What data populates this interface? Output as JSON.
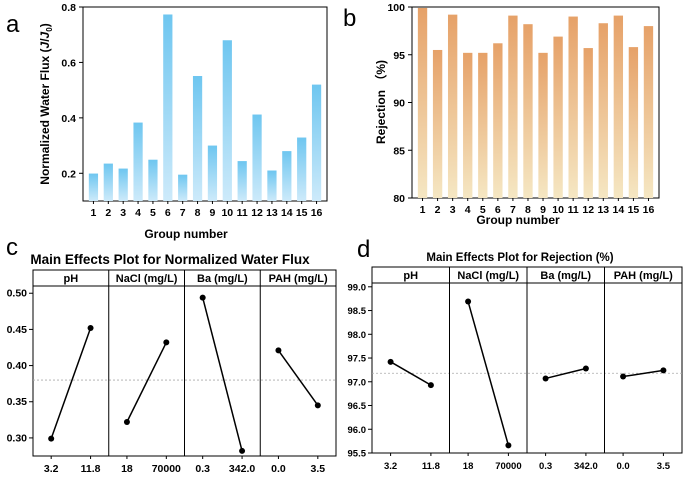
{
  "chart_data": [
    {
      "panel": "a",
      "type": "bar",
      "xlabel": "Group number",
      "ylabel": "Normalized Water Flux (J/J0)",
      "categories": [
        "1",
        "2",
        "3",
        "4",
        "5",
        "6",
        "7",
        "8",
        "9",
        "10",
        "11",
        "12",
        "13",
        "14",
        "15",
        "16"
      ],
      "values": [
        0.199,
        0.235,
        0.217,
        0.383,
        0.249,
        0.773,
        0.195,
        0.551,
        0.3,
        0.68,
        0.244,
        0.412,
        0.21,
        0.28,
        0.329,
        0.52
      ],
      "ylim": [
        0.1,
        0.8
      ],
      "yticks": [
        0.2,
        0.4,
        0.6,
        0.8
      ],
      "color_top": "#6ec6f0",
      "color_bottom": "#cdeafa"
    },
    {
      "panel": "b",
      "type": "bar",
      "xlabel": "Group number",
      "ylabel": "Rejection （%)",
      "categories": [
        "1",
        "2",
        "3",
        "4",
        "5",
        "6",
        "7",
        "8",
        "9",
        "10",
        "11",
        "12",
        "13",
        "14",
        "15",
        "16"
      ],
      "values": [
        99.9,
        95.5,
        99.2,
        95.2,
        95.2,
        96.2,
        99.1,
        98.2,
        95.2,
        96.9,
        99.0,
        95.7,
        98.3,
        99.1,
        95.8,
        98.0
      ],
      "ylim": [
        80,
        100
      ],
      "yticks": [
        80,
        85,
        90,
        95,
        100
      ],
      "color_top": "#e6a168",
      "color_bottom": "#f5e7c3"
    },
    {
      "panel": "c",
      "type": "line",
      "title": "Main Effects Plot for Normalized Water Flux",
      "ylim": [
        0.275,
        0.51
      ],
      "yticks": [
        "0.30",
        "0.35",
        "0.40",
        "0.45",
        "0.50"
      ],
      "mean": 0.38,
      "factors": [
        {
          "name": "pH",
          "levels": [
            "3.2",
            "11.8"
          ],
          "values": [
            0.299,
            0.452
          ]
        },
        {
          "name": "NaCl (mg/L)",
          "levels": [
            "18",
            "70000"
          ],
          "values": [
            0.322,
            0.432
          ]
        },
        {
          "name": "Ba (mg/L)",
          "levels": [
            "0.3",
            "342.0"
          ],
          "values": [
            0.494,
            0.282
          ]
        },
        {
          "name": "PAH (mg/L)",
          "levels": [
            "0.0",
            "3.5"
          ],
          "values": [
            0.421,
            0.345
          ]
        }
      ]
    },
    {
      "panel": "d",
      "type": "line",
      "title": "Main Effects Plot for Rejection (%)",
      "ylim": [
        95.5,
        99.08
      ],
      "yticks": [
        "95.5",
        "96.0",
        "96.5",
        "97.0",
        "97.5",
        "98.0",
        "98.5",
        "99.0"
      ],
      "mean": 97.18,
      "factors": [
        {
          "name": "pH",
          "levels": [
            "3.2",
            "11.8"
          ],
          "values": [
            97.42,
            96.93
          ]
        },
        {
          "name": "NaCl (mg/L)",
          "levels": [
            "18",
            "70000"
          ],
          "values": [
            98.69,
            95.66
          ]
        },
        {
          "name": "Ba (mg/L)",
          "levels": [
            "0.3",
            "342.0"
          ],
          "values": [
            97.07,
            97.28
          ]
        },
        {
          "name": "PAH (mg/L)",
          "levels": [
            "0.0",
            "3.5"
          ],
          "values": [
            97.11,
            97.24
          ]
        }
      ]
    }
  ]
}
